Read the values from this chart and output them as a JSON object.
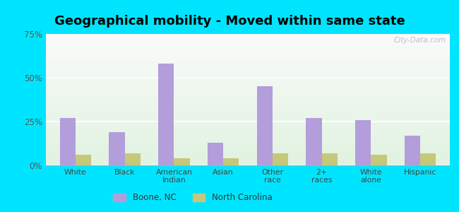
{
  "title": "Geographical mobility - Moved within same state",
  "categories": [
    "White",
    "Black",
    "American\nIndian",
    "Asian",
    "Other\nrace",
    "2+\nraces",
    "White\nalone",
    "Hispanic"
  ],
  "boone_values": [
    27,
    19,
    58,
    13,
    45,
    27,
    26,
    17
  ],
  "nc_values": [
    6,
    7,
    4,
    4,
    7,
    7,
    6,
    7
  ],
  "boone_color": "#b39ddb",
  "nc_color": "#c5c87a",
  "boone_label": "Boone, NC",
  "nc_label": "North Carolina",
  "ylim": [
    0,
    75
  ],
  "yticks": [
    0,
    25,
    50,
    75
  ],
  "ytick_labels": [
    "0%",
    "25%",
    "50%",
    "75%"
  ],
  "figure_bg": "#00e5ff",
  "bar_width": 0.32,
  "title_fontsize": 13,
  "watermark": "City-Data.com"
}
